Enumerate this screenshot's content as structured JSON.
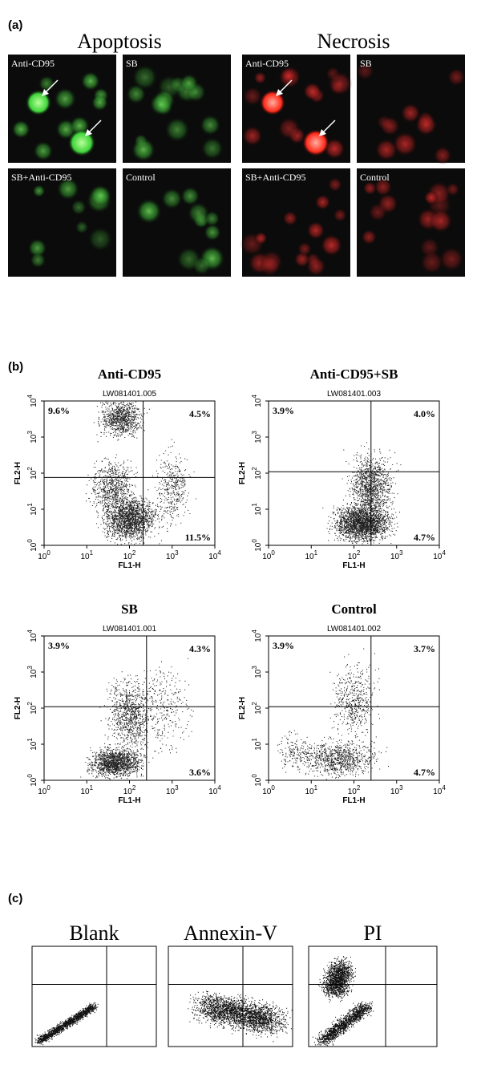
{
  "panel_a": {
    "label": "(a)",
    "groups": [
      {
        "title": "Apoptosis",
        "panels": [
          "Anti-CD95",
          "SB",
          "SB+Anti-CD95",
          "Control"
        ]
      },
      {
        "title": "Necrosis",
        "panels": [
          "Anti-CD95",
          "SB",
          "SB+Anti-CD95",
          "Control"
        ]
      }
    ]
  },
  "panel_b": {
    "label": "(b)",
    "x_axis_label": "FL1-H",
    "y_axis_label": "FL2-H",
    "tick_base": "10",
    "tick_exponents": [
      "0",
      "1",
      "2",
      "3",
      "4"
    ],
    "plots": [
      {
        "title": "Anti-CD95",
        "file": "LW081401.005",
        "upper_left": "9.6%",
        "upper_right": "4.5%",
        "lower_right": "11.5%"
      },
      {
        "title": "Anti-CD95+SB",
        "file": "LW081401.003",
        "upper_left": "3.9%",
        "upper_right": "4.0%",
        "lower_right": "4.7%"
      },
      {
        "title": "SB",
        "file": "LW081401.001",
        "upper_left": "3.9%",
        "upper_right": "4.3%",
        "lower_right": "3.6%"
      },
      {
        "title": "Control",
        "file": "LW081401.002",
        "upper_left": "3.9%",
        "upper_right": "3.7%",
        "lower_right": "4.7%"
      }
    ]
  },
  "panel_c": {
    "label": "(c)",
    "plots": [
      "Blank",
      "Annexin-V",
      "PI"
    ]
  }
}
